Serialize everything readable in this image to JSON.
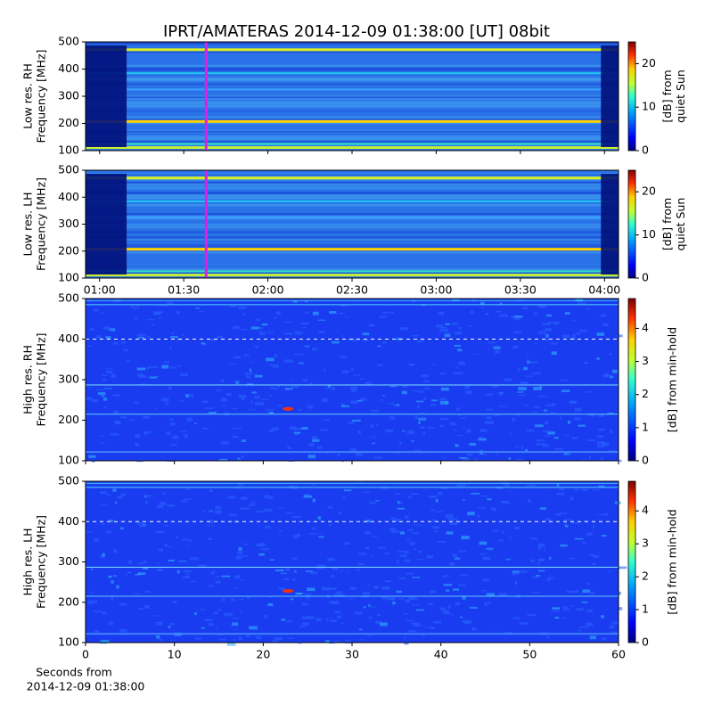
{
  "chart_data": [
    {
      "type": "spectrogram",
      "title": "IPRT/AMATERAS 2014-12-09 01:38:00 [UT]   08bit",
      "ylabel": [
        "Low res. RH",
        "Frequency [MHz]"
      ],
      "clabel": [
        "[dB] from",
        "quiet Sun"
      ],
      "xlim": [
        "00:55",
        "04:05"
      ],
      "marker": "01:38",
      "marker_color": "#e020e0",
      "ylim": [
        100,
        500
      ],
      "yticks": [
        100,
        200,
        300,
        400,
        500
      ],
      "clim": [
        0,
        25
      ],
      "cticks": [
        0,
        10,
        20
      ],
      "colormap": "jet"
    },
    {
      "type": "spectrogram",
      "ylabel": [
        "Low res. LH",
        "Frequency [MHz]"
      ],
      "clabel": [
        "[dB] from",
        "quiet Sun"
      ],
      "xlim": [
        "00:55",
        "04:05"
      ],
      "xticks": [
        "01:00",
        "01:30",
        "02:00",
        "02:30",
        "03:00",
        "03:30",
        "04:00"
      ],
      "marker": "01:38",
      "marker_color": "#e020e0",
      "ylim": [
        100,
        500
      ],
      "yticks": [
        100,
        200,
        300,
        400,
        500
      ],
      "clim": [
        0,
        25
      ],
      "cticks": [
        0,
        10,
        20
      ],
      "colormap": "jet"
    },
    {
      "type": "spectrogram",
      "ylabel": [
        "High res. RH",
        "Frequency [MHz]"
      ],
      "clabel": [
        "[dB] from min-hold"
      ],
      "xlim": [
        0,
        60
      ],
      "ylim": [
        100,
        500
      ],
      "yticks": [
        100,
        200,
        300,
        400,
        500
      ],
      "clim": [
        0,
        4.9
      ],
      "cticks": [
        0,
        1,
        2,
        3,
        4
      ],
      "colormap": "jet"
    },
    {
      "type": "spectrogram",
      "ylabel": [
        "High res. LH",
        "Frequency [MHz]"
      ],
      "clabel": [
        "[dB] from min-hold"
      ],
      "xlim": [
        0,
        60
      ],
      "xticks": [
        0,
        10,
        20,
        30,
        40,
        50,
        60
      ],
      "xlabel": [
        "Seconds from",
        "2014-12-09 01:38:00"
      ],
      "ylim": [
        100,
        500
      ],
      "yticks": [
        100,
        200,
        300,
        400,
        500
      ],
      "clim": [
        0,
        4.9
      ],
      "cticks": [
        0,
        1,
        2,
        3,
        4
      ],
      "colormap": "jet"
    }
  ]
}
